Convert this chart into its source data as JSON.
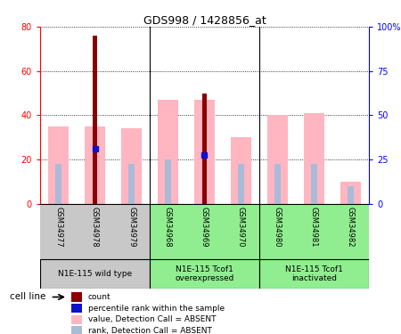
{
  "title": "GDS998 / 1428856_at",
  "samples": [
    "GSM34977",
    "GSM34978",
    "GSM34979",
    "GSM34968",
    "GSM34969",
    "GSM34970",
    "GSM34980",
    "GSM34981",
    "GSM34982"
  ],
  "count": [
    0,
    76,
    0,
    0,
    50,
    0,
    0,
    0,
    0
  ],
  "percentile_rank": [
    0,
    25,
    0,
    0,
    22,
    0,
    0,
    0,
    0
  ],
  "value_absent": [
    35,
    35,
    34,
    47,
    47,
    30,
    40,
    41,
    10
  ],
  "rank_absent": [
    18,
    0,
    18,
    20,
    0,
    18,
    18,
    18,
    8
  ],
  "has_count": [
    false,
    true,
    false,
    false,
    true,
    false,
    false,
    false,
    false
  ],
  "groups": [
    {
      "label": "N1E-115 wild type",
      "start": 0,
      "end": 3,
      "color": "#c8c8c8"
    },
    {
      "label": "N1E-115 Tcof1\noverexpressed",
      "start": 3,
      "end": 6,
      "color": "#90EE90"
    },
    {
      "label": "N1E-115 Tcof1\ninactivated",
      "start": 6,
      "end": 9,
      "color": "#90EE90"
    }
  ],
  "left_ylim": [
    0,
    80
  ],
  "right_ylim": [
    0,
    100
  ],
  "left_yticks": [
    0,
    20,
    40,
    60,
    80
  ],
  "right_yticks": [
    0,
    25,
    50,
    75,
    100
  ],
  "right_yticklabels": [
    "0",
    "25",
    "50",
    "75",
    "100%"
  ],
  "color_count": "#8B0000",
  "color_rank": "#1010CC",
  "color_value_absent": "#FFB6C1",
  "color_rank_absent": "#AABBD8",
  "sample_bg": "#c8c8c8",
  "legend_items": [
    {
      "label": "count",
      "color": "#8B0000",
      "shape": "square"
    },
    {
      "label": "percentile rank within the sample",
      "color": "#1010CC",
      "shape": "square"
    },
    {
      "label": "value, Detection Call = ABSENT",
      "color": "#FFB6C1",
      "shape": "square"
    },
    {
      "label": "rank, Detection Call = ABSENT",
      "color": "#AABBD8",
      "shape": "square"
    }
  ]
}
